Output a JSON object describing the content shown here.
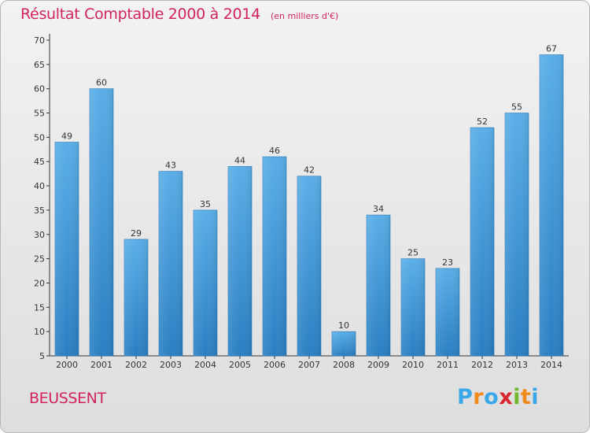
{
  "header": {
    "title": "Résultat Comptable 2000 à 2014",
    "subtitle": "(en milliers d'€)"
  },
  "footer": {
    "commune": "BEUSSENT",
    "logo_text": "Proxiti",
    "logo_colors": [
      "#3aa7e8",
      "#f08a1c",
      "#3aa7e8",
      "#d8262f",
      "#74b62e",
      "#f08a1c",
      "#3aa7e8"
    ]
  },
  "colors": {
    "bar_light": "#5aaee8",
    "bar_dark": "#2a7fc2",
    "title": "#d2245a"
  },
  "chart_data": {
    "type": "bar",
    "categories": [
      "2000",
      "2001",
      "2002",
      "2003",
      "2004",
      "2005",
      "2006",
      "2007",
      "2008",
      "2009",
      "2010",
      "2011",
      "2012",
      "2013",
      "2014"
    ],
    "values": [
      49,
      60,
      29,
      43,
      35,
      44,
      46,
      42,
      10,
      34,
      25,
      23,
      52,
      55,
      67
    ],
    "yticks": [
      5,
      10,
      15,
      20,
      25,
      30,
      35,
      40,
      45,
      50,
      55,
      60,
      65,
      70
    ],
    "ylim": [
      5,
      70
    ],
    "grid": false,
    "title": "Résultat Comptable 2000 à 2014",
    "ylabel": "",
    "xlabel": ""
  }
}
